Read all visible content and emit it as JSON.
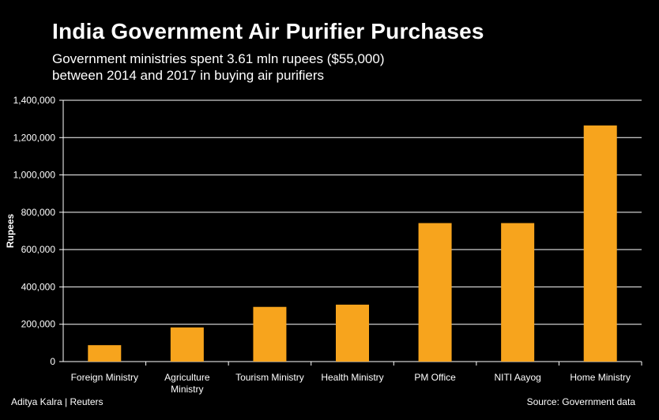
{
  "chart_data": {
    "type": "bar",
    "title": "India Government Air Purifier Purchases",
    "subtitle_lines": [
      "Government ministries spent 3.61 mln rupees ($55,000)",
      "between 2014 and 2017 in buying air purifiers"
    ],
    "xlabel": "",
    "ylabel": "Rupees",
    "ylim": [
      0,
      1400000
    ],
    "yticks": [
      0,
      200000,
      400000,
      600000,
      800000,
      1000000,
      1200000,
      1400000
    ],
    "ytick_labels": [
      "0",
      "200,000",
      "400,000",
      "600,000",
      "800,000",
      "1,000,000",
      "1,200,000",
      "1,400,000"
    ],
    "grid": true,
    "categories": [
      [
        "Foreign Ministry"
      ],
      [
        "Agriculture",
        "Ministry"
      ],
      [
        "Tourism Ministry"
      ],
      [
        "Health Ministry"
      ],
      [
        "PM Office"
      ],
      [
        "NITI  Aayog"
      ],
      [
        "Home Ministry"
      ]
    ],
    "values": [
      88000,
      183000,
      293000,
      305000,
      742000,
      742000,
      1265000
    ],
    "bar_color": "#F7A41D",
    "source": "Source: Government data",
    "credit": "Aditya Kalra | Reuters"
  }
}
